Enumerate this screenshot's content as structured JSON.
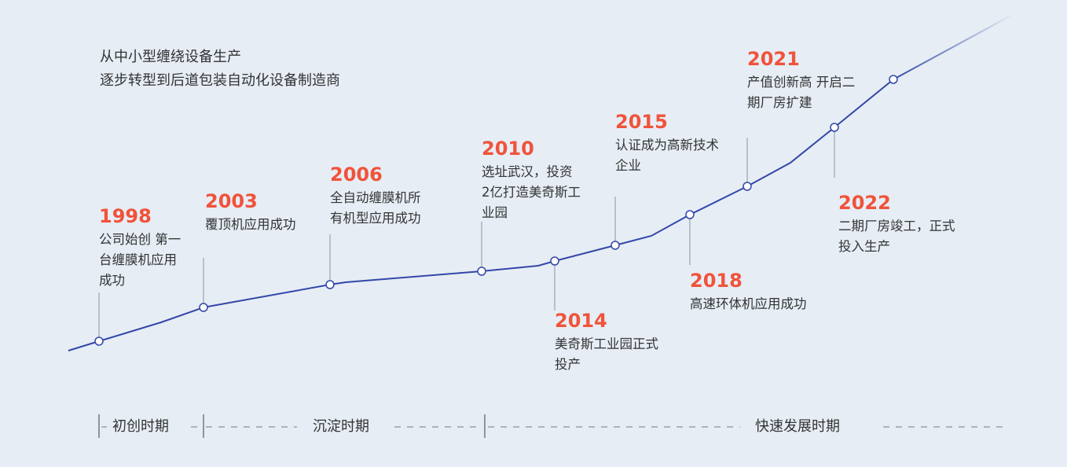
{
  "intro": {
    "line1": "从中小型缠绕设备生产",
    "line2": "逐步转型到后道包装自动化设备制造商"
  },
  "colors": {
    "line": "#3347a8",
    "year": "#f0533a",
    "background": "#e6edf5",
    "stem": "#a9b0bd"
  },
  "events": [
    {
      "year": "1998",
      "lines": [
        "公司始创 第一",
        "台缠膜机应用",
        "成功"
      ]
    },
    {
      "year": "2003",
      "lines": [
        "覆顶机应用成功"
      ]
    },
    {
      "year": "2006",
      "lines": [
        "全自动缠膜机所",
        "有机型应用成功"
      ]
    },
    {
      "year": "2010",
      "lines": [
        "选址武汉，投资",
        "2亿打造美奇斯工",
        "业园"
      ]
    },
    {
      "year": "2014",
      "lines": [
        "美奇斯工业园正式",
        "投产"
      ]
    },
    {
      "year": "2015",
      "lines": [
        "认证成为高新技术",
        "企业"
      ]
    },
    {
      "year": "2018",
      "lines": [
        "高速环体机应用成功"
      ]
    },
    {
      "year": "2021",
      "lines": [
        "产值创新高 开启二",
        "期厂房扩建"
      ]
    },
    {
      "year": "2022",
      "lines": [
        "二期厂房竣工，正式",
        "投入生产"
      ]
    }
  ],
  "phases": [
    "初创时期",
    "沉淀时期",
    "快速发展时期"
  ]
}
